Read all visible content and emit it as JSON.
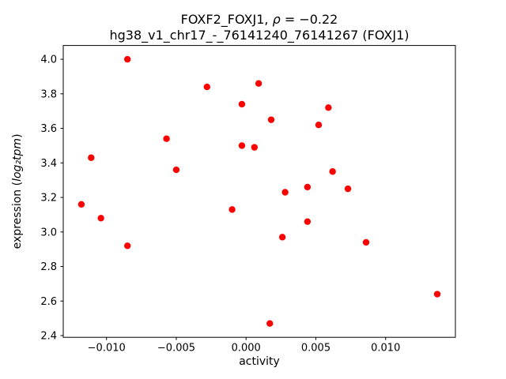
{
  "chart_data": {
    "type": "scatter",
    "title_line1": {
      "prefix": "FOXF2_FOXJ1, ",
      "math": "ρ",
      "suffix": " = −0.22"
    },
    "title_line2": "hg38_v1_chr17_-_76141240_76141267 (FOXJ1)",
    "xlabel": "activity",
    "ylabel": {
      "prefix": "expression (",
      "math": "log₂tpm",
      "suffix": ")"
    },
    "marker_color": "#ff0000",
    "axis_color": "#000000",
    "background_color": "#ffffff",
    "legend": "none",
    "grid": false,
    "xlim": [
      -0.0131,
      0.015
    ],
    "ylim": [
      2.39,
      4.08
    ],
    "xticks": [
      -0.01,
      -0.005,
      0.0,
      0.005,
      0.01
    ],
    "xtick_labels": [
      "−0.010",
      "−0.005",
      "0.000",
      "0.005",
      "0.010"
    ],
    "yticks": [
      2.4,
      2.6,
      2.8,
      3.0,
      3.2,
      3.4,
      3.6,
      3.8,
      4.0
    ],
    "ytick_labels": [
      "2.4",
      "2.6",
      "2.8",
      "3.0",
      "3.2",
      "3.4",
      "3.6",
      "3.8",
      "4.0"
    ],
    "points": [
      [
        -0.0118,
        3.16
      ],
      [
        -0.0111,
        3.43
      ],
      [
        -0.0104,
        3.08
      ],
      [
        -0.0085,
        4.0
      ],
      [
        -0.0085,
        2.92
      ],
      [
        -0.0057,
        3.54
      ],
      [
        -0.005,
        3.36
      ],
      [
        -0.0028,
        3.84
      ],
      [
        -0.001,
        3.13
      ],
      [
        -0.0003,
        3.74
      ],
      [
        -0.0003,
        3.5
      ],
      [
        0.0006,
        3.49
      ],
      [
        0.0009,
        3.86
      ],
      [
        0.0018,
        3.65
      ],
      [
        0.0017,
        2.47
      ],
      [
        0.0026,
        2.97
      ],
      [
        0.0028,
        3.23
      ],
      [
        0.0044,
        3.26
      ],
      [
        0.0044,
        3.06
      ],
      [
        0.0052,
        3.62
      ],
      [
        0.0059,
        3.72
      ],
      [
        0.0062,
        3.35
      ],
      [
        0.0073,
        3.25
      ],
      [
        0.0086,
        2.94
      ],
      [
        0.0137,
        2.64
      ]
    ]
  }
}
